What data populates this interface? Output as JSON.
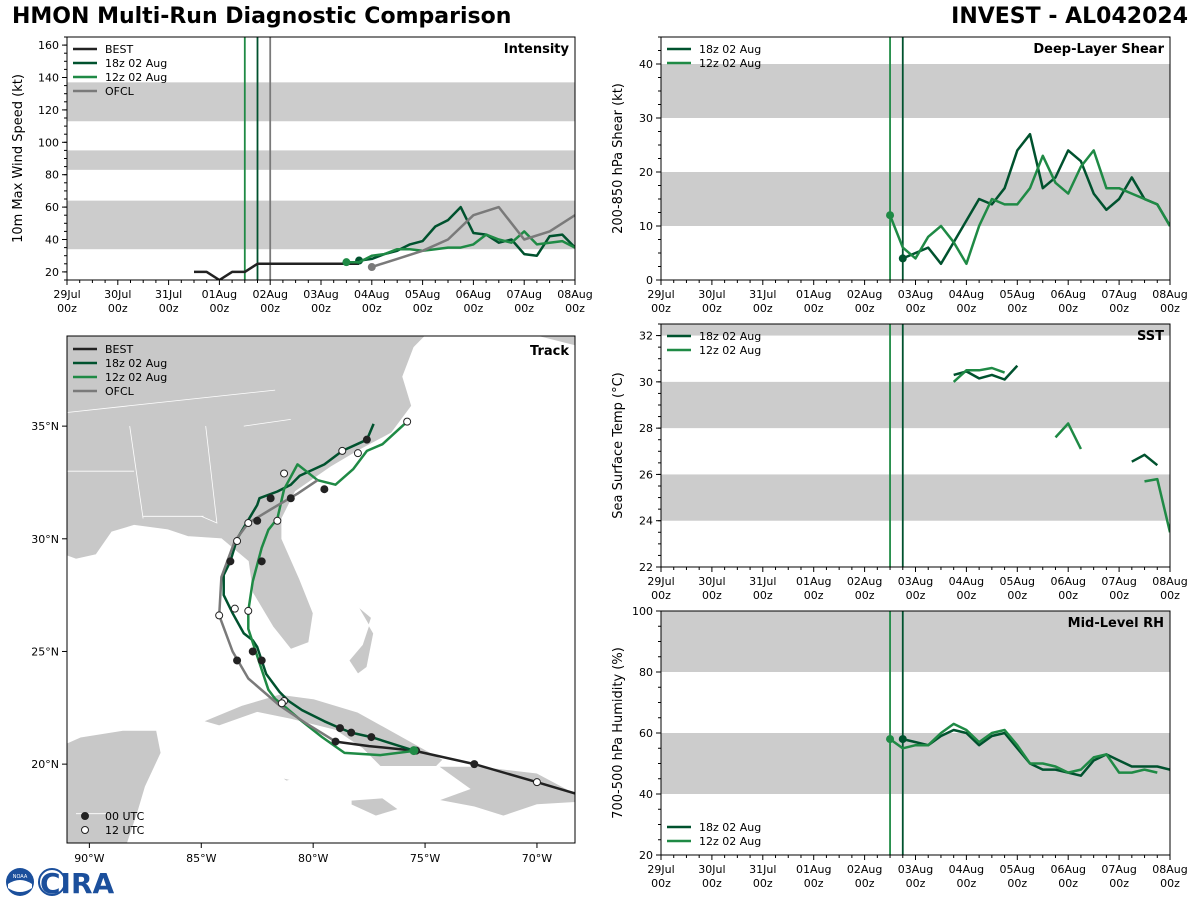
{
  "header": {
    "title_left": "HMON Multi-Run Diagnostic Comparison",
    "title_right": "INVEST - AL042024"
  },
  "logo": {
    "ring_text": "NOAA",
    "text": "CIRA"
  },
  "colors": {
    "best": "#222222",
    "run18": "#00522e",
    "run12": "#1f8a45",
    "ofcl": "#7a7a7a",
    "band": "#cccccc",
    "land": "#c8c8c8"
  },
  "time_axis": {
    "ticks": [
      "29Jul\n00z",
      "30Jul\n00z",
      "31Jul\n00z",
      "01Aug\n00z",
      "02Aug\n00z",
      "03Aug\n00z",
      "04Aug\n00z",
      "05Aug\n00z",
      "06Aug\n00z",
      "07Aug\n00z",
      "08Aug\n00z"
    ],
    "range_days": [
      0,
      10
    ]
  },
  "chart_data": [
    {
      "id": "intensity",
      "type": "line",
      "title": "Intensity",
      "ylabel": "10m Max Wind Speed (kt)",
      "ylim": [
        15,
        165
      ],
      "yticks": [
        20,
        40,
        60,
        80,
        100,
        120,
        140,
        160
      ],
      "bands": [
        [
          34,
          64
        ],
        [
          83,
          95
        ],
        [
          113,
          137
        ]
      ],
      "vlines": [
        {
          "x": 3.5,
          "series": "run12"
        },
        {
          "x": 3.75,
          "series": "run18"
        },
        {
          "x": 4.0,
          "series": "ofcl"
        }
      ],
      "legend": [
        "BEST",
        "18z 02 Aug",
        "12z 02 Aug",
        "OFCL"
      ],
      "series": [
        {
          "key": "best",
          "name": "BEST",
          "x": [
            2.5,
            2.75,
            3.0,
            3.25,
            3.5,
            3.75,
            4.0,
            4.25,
            4.5,
            4.75,
            5.0,
            5.25,
            5.5,
            5.75
          ],
          "y": [
            20,
            20,
            15,
            20,
            20,
            25,
            25,
            25,
            25,
            25,
            25,
            25,
            25,
            25
          ]
        },
        {
          "key": "run18",
          "name": "18z 02 Aug",
          "x": [
            5.75,
            6.0,
            6.25,
            6.5,
            6.75,
            7.0,
            7.25,
            7.5,
            7.75,
            8.0,
            8.25,
            8.5,
            8.75,
            9.0,
            9.25,
            9.5,
            9.75,
            10.0
          ],
          "y": [
            27,
            28,
            31,
            33,
            37,
            39,
            48,
            52,
            60,
            44,
            43,
            38,
            40,
            31,
            30,
            42,
            43,
            35
          ],
          "dot": [
            5.75,
            27
          ]
        },
        {
          "key": "run12",
          "name": "12z 02 Aug",
          "x": [
            5.5,
            5.75,
            6.0,
            6.25,
            6.5,
            6.75,
            7.0,
            7.25,
            7.5,
            7.75,
            8.0,
            8.25,
            8.5,
            8.75,
            9.0,
            9.25,
            9.5,
            9.75,
            10.0
          ],
          "y": [
            26,
            26,
            30,
            31,
            34,
            34,
            33,
            34,
            35,
            35,
            37,
            43,
            40,
            38,
            45,
            37,
            38,
            39,
            35
          ],
          "dot": [
            5.5,
            26
          ]
        },
        {
          "key": "ofcl",
          "name": "OFCL",
          "x": [
            6.0,
            6.5,
            7.0,
            7.5,
            8.0,
            8.5,
            9.0,
            9.5,
            10.0
          ],
          "y": [
            23,
            28,
            33,
            40,
            55,
            60,
            40,
            45,
            55
          ],
          "dot": [
            6.0,
            23
          ]
        }
      ]
    },
    {
      "id": "shear",
      "type": "line",
      "title": "Deep-Layer Shear",
      "ylabel": "200-850 hPa Shear (kt)",
      "ylim": [
        0,
        45
      ],
      "yticks": [
        0,
        10,
        20,
        30,
        40
      ],
      "bands": [
        [
          10,
          20
        ],
        [
          30,
          40
        ]
      ],
      "vlines": [
        {
          "x": 4.5,
          "series": "run12"
        },
        {
          "x": 4.75,
          "series": "run18"
        }
      ],
      "legend": [
        "18z 02 Aug",
        "12z 02 Aug"
      ],
      "series": [
        {
          "key": "run18",
          "name": "18z 02 Aug",
          "x": [
            4.75,
            5.0,
            5.25,
            5.5,
            5.75,
            6.0,
            6.25,
            6.5,
            6.75,
            7.0,
            7.25,
            7.5,
            7.75,
            8.0,
            8.25,
            8.5,
            8.75,
            9.0,
            9.25,
            9.5,
            9.75,
            10.0
          ],
          "y": [
            4,
            5,
            6,
            3,
            7,
            11,
            15,
            14,
            17,
            24,
            27,
            17,
            19,
            24,
            22,
            16,
            13,
            15,
            19,
            15,
            14,
            10
          ],
          "dot": [
            4.75,
            4
          ]
        },
        {
          "key": "run12",
          "name": "12z 02 Aug",
          "x": [
            4.5,
            4.75,
            5.0,
            5.25,
            5.5,
            5.75,
            6.0,
            6.25,
            6.5,
            6.75,
            7.0,
            7.25,
            7.5,
            7.75,
            8.0,
            8.25,
            8.5,
            8.75,
            9.0,
            9.25,
            9.5,
            9.75,
            10.0
          ],
          "y": [
            12,
            6,
            4,
            8,
            10,
            7,
            3,
            10,
            15,
            14,
            14,
            17,
            23,
            18,
            16,
            21,
            24,
            17,
            17,
            16,
            15,
            14,
            10
          ],
          "dot": [
            4.5,
            12
          ]
        }
      ]
    },
    {
      "id": "sst",
      "type": "line",
      "title": "SST",
      "ylabel": "Sea Surface Temp (°C)",
      "ylim": [
        22,
        32.5
      ],
      "yticks": [
        22,
        24,
        26,
        28,
        30,
        32
      ],
      "bands": [
        [
          24,
          26
        ],
        [
          28,
          30
        ],
        [
          32,
          32.5
        ]
      ],
      "vlines": [
        {
          "x": 4.5,
          "series": "run12"
        },
        {
          "x": 4.75,
          "series": "run18"
        }
      ],
      "legend": [
        "18z 02 Aug",
        "12z 02 Aug"
      ],
      "series": [
        {
          "key": "run18",
          "name": "18z 02 Aug",
          "segments": [
            {
              "x": [
                5.75,
                6.0,
                6.25,
                6.5,
                6.75,
                7.0
              ],
              "y": [
                30.3,
                30.45,
                30.15,
                30.3,
                30.1,
                30.7
              ]
            },
            {
              "x": [
                9.25,
                9.5,
                9.75
              ],
              "y": [
                26.55,
                26.85,
                26.4
              ]
            }
          ]
        },
        {
          "key": "run12",
          "name": "12z 02 Aug",
          "segments": [
            {
              "x": [
                5.75,
                6.0,
                6.25,
                6.5,
                6.75
              ],
              "y": [
                30.0,
                30.5,
                30.5,
                30.6,
                30.4
              ]
            },
            {
              "x": [
                7.75,
                8.0,
                8.25
              ],
              "y": [
                27.6,
                28.2,
                27.1
              ]
            },
            {
              "x": [
                9.5,
                9.75,
                10.0
              ],
              "y": [
                25.7,
                25.8,
                23.5
              ]
            }
          ]
        }
      ]
    },
    {
      "id": "rh",
      "type": "line",
      "title": "Mid-Level RH",
      "ylabel": "700-500 hPa Humidity (%)",
      "ylim": [
        20,
        100
      ],
      "yticks": [
        20,
        40,
        60,
        80,
        100
      ],
      "bands": [
        [
          40,
          60
        ],
        [
          80,
          100
        ]
      ],
      "vlines": [
        {
          "x": 4.5,
          "series": "run12"
        },
        {
          "x": 4.75,
          "series": "run18"
        }
      ],
      "legend": [
        "18z 02 Aug",
        "12z 02 Aug"
      ],
      "series": [
        {
          "key": "run18",
          "name": "18z 02 Aug",
          "x": [
            4.75,
            5.0,
            5.25,
            5.5,
            5.75,
            6.0,
            6.25,
            6.5,
            6.75,
            7.0,
            7.25,
            7.5,
            7.75,
            8.0,
            8.25,
            8.5,
            8.75,
            9.0,
            9.25,
            9.5,
            9.75,
            10.0
          ],
          "y": [
            58,
            57,
            56,
            59,
            61,
            60,
            56,
            59,
            60,
            55,
            50,
            48,
            48,
            47,
            46,
            51,
            53,
            51,
            49,
            49,
            49,
            48
          ],
          "dot": [
            4.75,
            58
          ]
        },
        {
          "key": "run12",
          "name": "12z 02 Aug",
          "x": [
            4.5,
            4.75,
            5.0,
            5.25,
            5.5,
            5.75,
            6.0,
            6.25,
            6.5,
            6.75,
            7.0,
            7.25,
            7.5,
            7.75,
            8.0,
            8.25,
            8.5,
            8.75,
            9.0,
            9.25,
            9.5,
            9.75
          ],
          "y": [
            58,
            55,
            56,
            56,
            60,
            63,
            61,
            57,
            60,
            61,
            56,
            50,
            50,
            49,
            47,
            48,
            52,
            53,
            47,
            47,
            48,
            47
          ],
          "dot": [
            4.5,
            58
          ]
        }
      ]
    },
    {
      "id": "track",
      "type": "scatter",
      "title": "Track",
      "xlim": [
        -91,
        -68.3
      ],
      "ylim": [
        16.5,
        39
      ],
      "xticks": [
        -90,
        -85,
        -80,
        -75,
        -70
      ],
      "xticklabels": [
        "90°W",
        "85°W",
        "80°W",
        "75°W",
        "70°W"
      ],
      "yticks": [
        20,
        25,
        30,
        35
      ],
      "yticklabels": [
        "20°N",
        "25°N",
        "30°N",
        "35°N"
      ],
      "legend": [
        "BEST",
        "18z 02 Aug",
        "12z 02 Aug",
        "OFCL"
      ],
      "marker_legend": [
        "00 UTC",
        "12 UTC"
      ],
      "series": [
        {
          "key": "best",
          "name": "BEST",
          "lon": [
            -79.0,
            -77.5,
            -75.5,
            -72.8,
            -70.0,
            -68.3
          ],
          "lat": [
            21.0,
            20.8,
            20.6,
            20.0,
            19.2,
            18.7
          ],
          "markers": [
            {
              "lon": -79.0,
              "lat": 21.0,
              "t": "00"
            },
            {
              "lon": -72.8,
              "lat": 20.0,
              "t": "00"
            },
            {
              "lon": -70.0,
              "lat": 19.2,
              "t": "12"
            }
          ]
        },
        {
          "key": "run18",
          "name": "18z 02 Aug",
          "lon": [
            -75.5,
            -77.4,
            -78.3,
            -78.8,
            -79.5,
            -80.5,
            -81.1,
            -81.5,
            -82.1,
            -82.3,
            -82.5,
            -82.7,
            -83.1,
            -83.6,
            -84.0,
            -84.0,
            -83.7,
            -83.4,
            -82.8,
            -82.5,
            -82.4,
            -81.6,
            -81.0,
            -80.6,
            -79.5,
            -78.7,
            -77.6,
            -77.3
          ],
          "lat": [
            20.6,
            21.2,
            21.4,
            21.6,
            21.9,
            22.4,
            22.8,
            23.2,
            24.0,
            24.6,
            25.2,
            25.5,
            25.8,
            26.7,
            27.5,
            28.4,
            29.0,
            30.0,
            31.0,
            31.5,
            31.8,
            32.1,
            32.4,
            32.8,
            33.3,
            33.9,
            34.4,
            35.1
          ],
          "markers": [
            {
              "lon": -77.4,
              "lat": 21.2,
              "t": "00"
            },
            {
              "lon": -78.3,
              "lat": 21.4,
              "t": "00"
            },
            {
              "lon": -78.8,
              "lat": 21.6,
              "t": "00"
            },
            {
              "lon": -82.3,
              "lat": 24.6,
              "t": "00"
            },
            {
              "lon": -82.7,
              "lat": 25.0,
              "t": "00"
            },
            {
              "lon": -83.7,
              "lat": 29.0,
              "t": "00"
            },
            {
              "lon": -82.3,
              "lat": 29.0,
              "t": "00"
            },
            {
              "lon": -82.5,
              "lat": 30.8,
              "t": "00"
            },
            {
              "lon": -81.9,
              "lat": 31.8,
              "t": "00"
            },
            {
              "lon": -81.0,
              "lat": 31.8,
              "t": "00"
            },
            {
              "lon": -79.5,
              "lat": 32.2,
              "t": "00"
            },
            {
              "lon": -77.6,
              "lat": 34.4,
              "t": "00"
            }
          ]
        },
        {
          "key": "run12",
          "name": "12z 02 Aug",
          "lon": [
            -75.4,
            -77.0,
            -78.6,
            -79.6,
            -80.5,
            -81.2,
            -81.7,
            -82.0,
            -82.5,
            -82.9,
            -82.9,
            -82.7,
            -82.3,
            -82.0,
            -81.6,
            -81.3,
            -80.7,
            -79.8,
            -79.0,
            -78.2,
            -77.6,
            -76.9,
            -75.8
          ],
          "lat": [
            20.6,
            20.4,
            20.5,
            21.2,
            21.9,
            22.5,
            22.9,
            23.3,
            24.8,
            26.0,
            26.8,
            28.1,
            29.6,
            30.4,
            30.9,
            32.2,
            33.3,
            32.6,
            32.4,
            33.1,
            33.9,
            34.2,
            35.2
          ],
          "markers": [
            {
              "lon": -75.4,
              "lat": 20.6,
              "t": "00"
            },
            {
              "lon": -81.3,
              "lat": 22.8,
              "t": "12"
            },
            {
              "lon": -82.9,
              "lat": 26.8,
              "t": "12"
            },
            {
              "lon": -81.6,
              "lat": 30.8,
              "t": "12"
            },
            {
              "lon": -81.3,
              "lat": 32.9,
              "t": "12"
            },
            {
              "lon": -78.7,
              "lat": 33.9,
              "t": "12"
            },
            {
              "lon": -78.0,
              "lat": 33.8,
              "t": "12"
            },
            {
              "lon": -75.8,
              "lat": 35.2,
              "t": "12"
            }
          ]
        },
        {
          "key": "ofcl",
          "name": "OFCL",
          "lon": [
            -79.0,
            -80.3,
            -81.5,
            -82.9,
            -83.6,
            -84.2,
            -84.1,
            -83.5,
            -82.9,
            -81.9,
            -80.7,
            -79.8
          ],
          "lat": [
            21.0,
            21.8,
            22.6,
            23.8,
            25.0,
            26.6,
            28.3,
            29.9,
            30.7,
            31.3,
            32.0,
            32.6
          ],
          "markers": [
            {
              "lon": -81.4,
              "lat": 22.7,
              "t": "12"
            },
            {
              "lon": -83.4,
              "lat": 24.6,
              "t": "00"
            },
            {
              "lon": -84.2,
              "lat": 26.6,
              "t": "12"
            },
            {
              "lon": -83.5,
              "lat": 26.9,
              "t": "12"
            },
            {
              "lon": -83.4,
              "lat": 29.9,
              "t": "12"
            },
            {
              "lon": -82.9,
              "lat": 30.7,
              "t": "12"
            }
          ]
        }
      ]
    }
  ]
}
